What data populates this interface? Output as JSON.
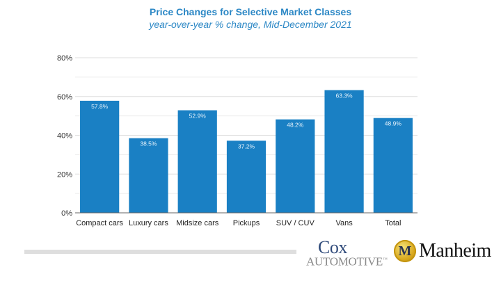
{
  "chart_data": {
    "type": "bar",
    "title": "Price Changes for Selective Market Classes",
    "subtitle": "year-over-year % change, Mid-December 2021",
    "categories": [
      "Compact cars",
      "Luxury cars",
      "Midsize cars",
      "Pickups",
      "SUV / CUV",
      "Vans",
      "Total"
    ],
    "values": [
      57.8,
      38.5,
      52.9,
      37.2,
      48.2,
      63.3,
      48.9
    ],
    "data_labels": [
      "57.8%",
      "38.5%",
      "52.9%",
      "37.2%",
      "48.2%",
      "63.3%",
      "48.9%"
    ],
    "xlabel": "",
    "ylabel": "",
    "ylim": [
      0,
      80
    ],
    "yticks": [
      0,
      20,
      40,
      60,
      80
    ],
    "ytick_labels": [
      "0%",
      "20%",
      "40%",
      "60%",
      "80%"
    ],
    "minor_gridlines": [
      10,
      30,
      50,
      70
    ],
    "grid": true,
    "legend": "none",
    "bar_color": "#1a80c4",
    "title_color": "#2b87c5"
  },
  "footer": {
    "cox_line1": "Cox",
    "cox_line2": "Automotive",
    "cox_tm": "™",
    "manheim_text": "Manheim",
    "manheim_emblem": "M"
  }
}
